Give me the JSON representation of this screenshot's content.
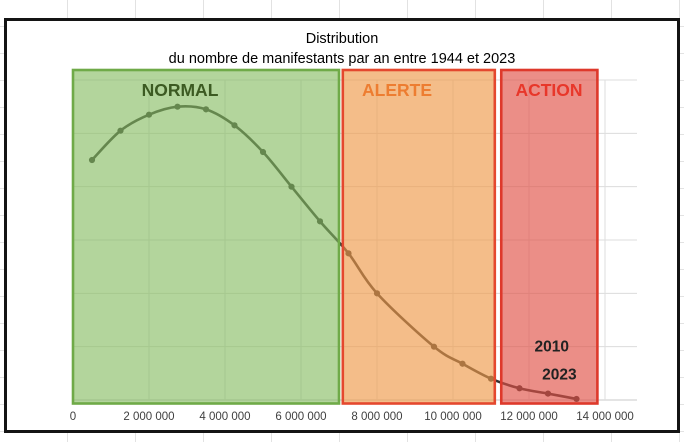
{
  "chart": {
    "title": "Distribution",
    "subtitle": "du nombre de manifestants par an entre 1944 et 2023",
    "line_color": "#333333",
    "x_axis": {
      "tick_labels": [
        "0",
        "2 000 000",
        "4 000 000",
        "6 000 000",
        "8 000 000",
        "10 000 000",
        "12 000 000",
        "14 000 000"
      ],
      "tick_values": [
        0,
        2000000,
        4000000,
        6000000,
        8000000,
        10000000,
        12000000,
        14000000
      ]
    },
    "zones": [
      {
        "id": "normal",
        "label": "NORMAL",
        "range_start": 0,
        "range_end": 7000000,
        "fill_color": "#84bb60",
        "fill_opacity": 0.62,
        "border_color": "#6faa48",
        "label_color": "#3c5a22"
      },
      {
        "id": "alerte",
        "label": "ALERTE",
        "range_start": 7100000,
        "range_end": 11100000,
        "fill_color": "#ee9a4a",
        "fill_opacity": 0.65,
        "border_color": "#e4482e",
        "label_color": "#ed7d31"
      },
      {
        "id": "action",
        "label": "ACTION",
        "range_start": 11270000,
        "range_end": 13800000,
        "fill_color": "#e05247",
        "fill_opacity": 0.65,
        "border_color": "#de392b",
        "label_color": "#e8372a"
      }
    ],
    "annotations": [
      {
        "text": "2010",
        "x_value": 12600000,
        "y_value": 1.01
      },
      {
        "text": "2023",
        "x_value": 12800000,
        "y_value": 0.49
      }
    ]
  },
  "chart_data": {
    "type": "line",
    "title": "Distribution du nombre de manifestants par an entre 1944 et 2023",
    "xlabel": "",
    "ylabel": "",
    "x": [
      500000,
      1250000,
      2000000,
      2750000,
      3500000,
      4250000,
      5000000,
      5750000,
      6500000,
      7250000,
      8000000,
      9500000,
      10250000,
      11000000,
      11750000,
      12500000,
      13250000
    ],
    "y": [
      4.5,
      5.05,
      5.35,
      5.5,
      5.45,
      5.15,
      4.65,
      4.0,
      3.35,
      2.75,
      2.0,
      1.0,
      0.68,
      0.4,
      0.22,
      0.12,
      0.02
    ],
    "y_units": "relative frequency (y axis unlabeled, 1 unit = 1 gridline interval)",
    "xlim": [
      0,
      14800000
    ],
    "ylim": [
      0,
      6.25
    ],
    "grid": true,
    "legend": false,
    "marker": "circle",
    "smooth": true
  }
}
